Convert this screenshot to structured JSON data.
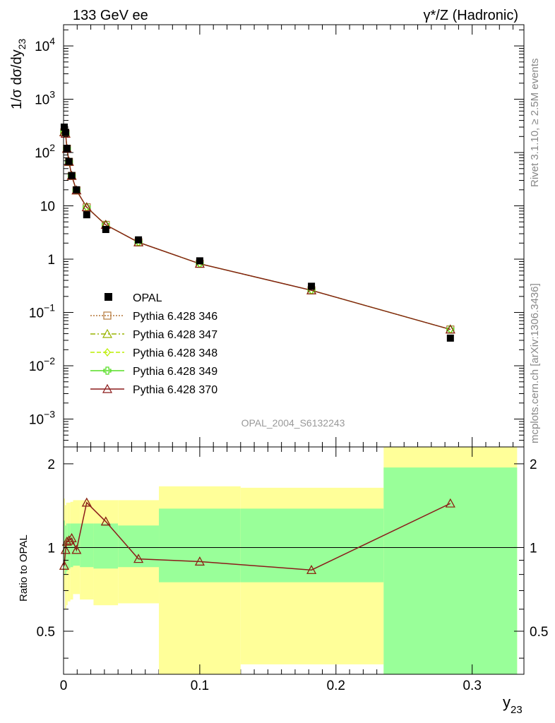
{
  "header": {
    "left": "133 GeV ee",
    "right": "γ*/Z (Hadronic)"
  },
  "side_labels": {
    "rivet": "Rivet 3.1.10, ≥ 2.5M events",
    "mcplots": "mcplots.cern.ch [arXiv:1306.3436]"
  },
  "analysis_id": "OPAL_2004_S6132243",
  "colors": {
    "band_outer": "#ffff99",
    "band_inner": "#99ff99",
    "data_marker": "#000000"
  },
  "chart_data": [
    {
      "type": "scatter",
      "panel": "main",
      "yscale": "log",
      "ylabel": "1/σ dσ/dy23",
      "ylabel_text": "1/σ dσ/dy",
      "ylabel_sub": "23",
      "xlim": [
        0,
        0.338
      ],
      "ylim": [
        0.0003,
        25000
      ],
      "y_ticks": [
        {
          "value": 0.001,
          "base": "10",
          "exp": "−3"
        },
        {
          "value": 0.01,
          "base": "10",
          "exp": "−2"
        },
        {
          "value": 0.1,
          "base": "10",
          "exp": "−1"
        },
        {
          "value": 1,
          "base": "1",
          "exp": ""
        },
        {
          "value": 10,
          "base": "10",
          "exp": ""
        },
        {
          "value": 100,
          "base": "10",
          "exp": "2"
        },
        {
          "value": 1000,
          "base": "10",
          "exp": "3"
        },
        {
          "value": 10000,
          "base": "10",
          "exp": "4"
        }
      ],
      "data": {
        "name": "OPAL",
        "x": [
          0.0005,
          0.0015,
          0.0025,
          0.004,
          0.006,
          0.0095,
          0.017,
          0.031,
          0.055,
          0.1,
          0.182,
          0.284
        ],
        "y": [
          300,
          240,
          120,
          68,
          37,
          20,
          6.8,
          3.6,
          2.3,
          0.93,
          0.31,
          0.033
        ]
      },
      "series": [
        {
          "name": "Pythia 6.428 346",
          "color": "#b5773a",
          "marker": "square",
          "dash": "2,2",
          "values": [
            240,
            225,
            118,
            67,
            36.5,
            19.5,
            9.4,
            4.4,
            2.07,
            0.82,
            0.26,
            0.048
          ]
        },
        {
          "name": "Pythia 6.428 347",
          "color": "#99b300",
          "marker": "triangle",
          "dash": "7,3,2,3",
          "values": [
            242,
            226,
            118,
            67,
            36.5,
            19.5,
            9.4,
            4.4,
            2.07,
            0.82,
            0.26,
            0.048
          ]
        },
        {
          "name": "Pythia 6.428 348",
          "color": "#bbee00",
          "marker": "diamond",
          "dash": "6,3",
          "values": [
            241,
            225,
            118,
            67,
            36.5,
            19.5,
            9.4,
            4.4,
            2.07,
            0.82,
            0.26,
            0.048
          ]
        },
        {
          "name": "Pythia 6.428 349",
          "color": "#55dd22",
          "marker": "cross",
          "dash": "",
          "values": [
            242,
            226,
            118,
            67,
            36.5,
            19.5,
            9.4,
            4.4,
            2.07,
            0.82,
            0.26,
            0.048
          ]
        },
        {
          "name": "Pythia 6.428 370",
          "color": "#8b1a1a",
          "marker": "triangle",
          "dash": "",
          "values": [
            240,
            225,
            118,
            67,
            36.5,
            19.5,
            9.4,
            4.4,
            2.07,
            0.82,
            0.26,
            0.048
          ]
        }
      ]
    },
    {
      "type": "line",
      "panel": "ratio",
      "ylabel": "Ratio to OPAL",
      "xlabel": "y23",
      "xlabel_text": "y",
      "xlabel_sub": "23",
      "xlim": [
        0,
        0.338
      ],
      "ylim": [
        0.35,
        2.3
      ],
      "y_ticks": [
        0.5,
        1,
        2
      ],
      "x_ticks": [
        0,
        0.1,
        0.2,
        0.3
      ],
      "x_tick_labels": [
        "0",
        "0.1",
        "0.2",
        "0.3"
      ],
      "reference": 1,
      "bands": [
        {
          "x0": 0.0,
          "x1": 0.001,
          "outer": [
            0.7,
            1.5
          ],
          "inner": [
            0.85,
            1.25
          ]
        },
        {
          "x0": 0.001,
          "x1": 0.002,
          "outer": [
            0.6,
            1.42
          ],
          "inner": [
            0.8,
            1.2
          ]
        },
        {
          "x0": 0.002,
          "x1": 0.003,
          "outer": [
            0.62,
            1.45
          ],
          "inner": [
            0.82,
            1.22
          ]
        },
        {
          "x0": 0.003,
          "x1": 0.005,
          "outer": [
            0.64,
            1.45
          ],
          "inner": [
            0.84,
            1.22
          ]
        },
        {
          "x0": 0.005,
          "x1": 0.007,
          "outer": [
            0.65,
            1.46
          ],
          "inner": [
            0.85,
            1.22
          ]
        },
        {
          "x0": 0.007,
          "x1": 0.012,
          "outer": [
            0.68,
            1.48
          ],
          "inner": [
            0.86,
            1.22
          ]
        },
        {
          "x0": 0.012,
          "x1": 0.022,
          "outer": [
            0.65,
            1.48
          ],
          "inner": [
            0.85,
            1.22
          ]
        },
        {
          "x0": 0.022,
          "x1": 0.04,
          "outer": [
            0.62,
            1.48
          ],
          "inner": [
            0.84,
            1.22
          ]
        },
        {
          "x0": 0.04,
          "x1": 0.07,
          "outer": [
            0.63,
            1.48
          ],
          "inner": [
            0.85,
            1.2
          ]
        },
        {
          "x0": 0.07,
          "x1": 0.13,
          "outer": [
            0.35,
            1.66
          ],
          "inner": [
            0.75,
            1.38
          ]
        },
        {
          "x0": 0.13,
          "x1": 0.235,
          "outer": [
            0.38,
            1.64
          ],
          "inner": [
            0.75,
            1.38
          ]
        },
        {
          "x0": 0.235,
          "x1": 0.333,
          "outer": [
            0.35,
            2.3
          ],
          "inner": [
            0.35,
            1.94
          ]
        }
      ],
      "x": [
        0.0005,
        0.0015,
        0.0025,
        0.004,
        0.006,
        0.0095,
        0.017,
        0.031,
        0.055,
        0.1,
        0.182,
        0.284
      ],
      "values": [
        0.86,
        0.98,
        1.05,
        1.06,
        1.08,
        0.98,
        1.45,
        1.24,
        0.91,
        0.89,
        0.83,
        1.44
      ]
    }
  ]
}
